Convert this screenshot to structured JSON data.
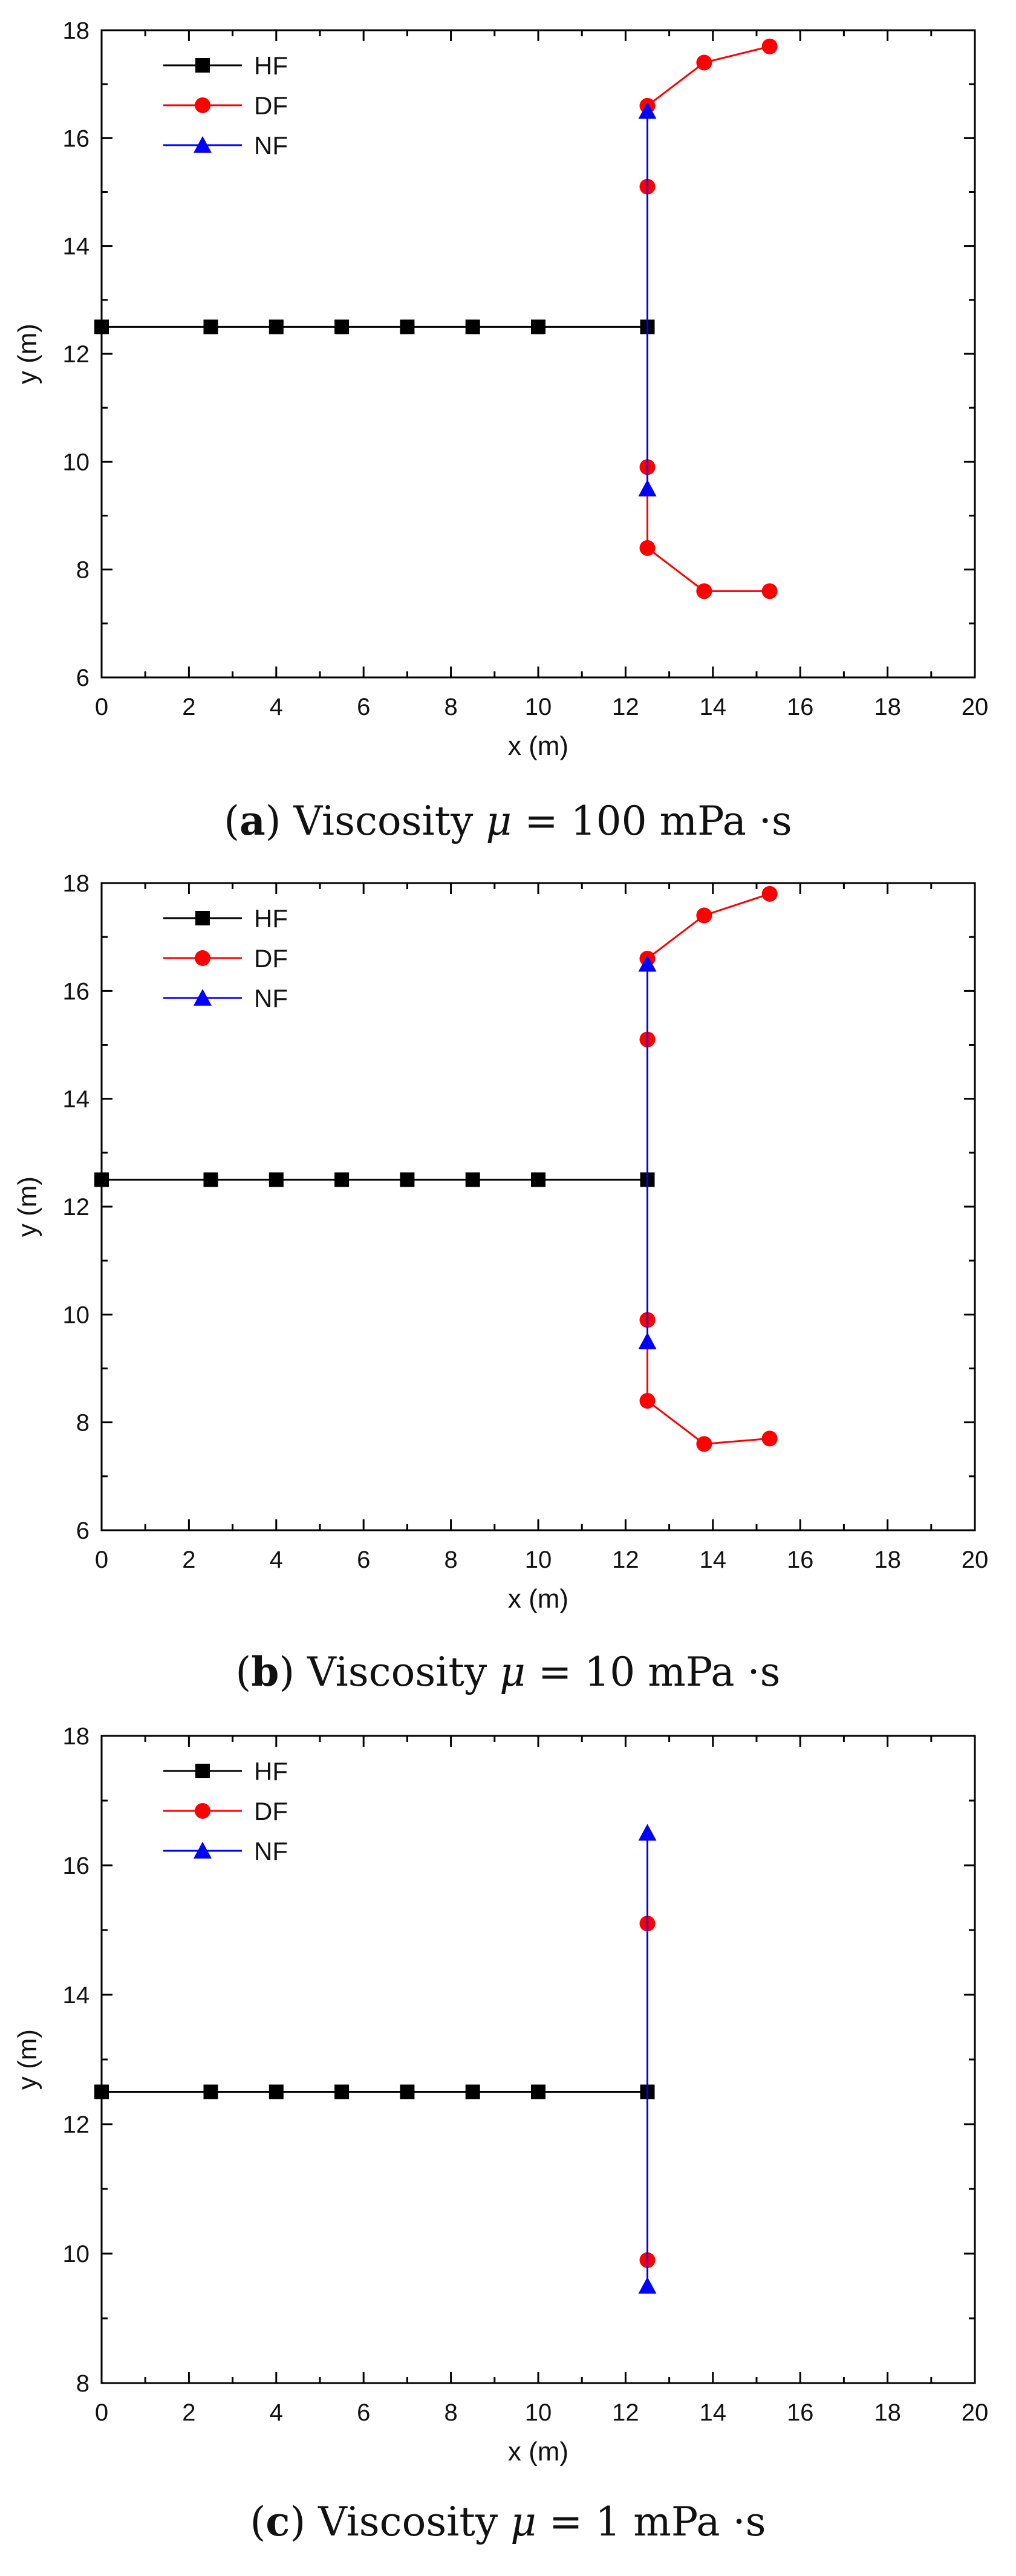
{
  "chart_data": [
    {
      "type": "line",
      "xlabel": "x (m)",
      "ylabel": "y (m)",
      "xlim": [
        0,
        20
      ],
      "ylim": [
        6,
        18
      ],
      "xticks": [
        0,
        2,
        4,
        6,
        8,
        10,
        12,
        14,
        16,
        18,
        20
      ],
      "yticks": [
        6,
        8,
        10,
        12,
        14,
        16,
        18
      ],
      "legend_position": "top-left",
      "caption": {
        "letter": "a",
        "text": "Viscosity",
        "symbol": "μ",
        "eq": "=",
        "value": "100 mPa ·s"
      },
      "series": [
        {
          "name": "HF",
          "color": "#000000",
          "marker": "square",
          "x": [
            0,
            2.5,
            4,
            5.5,
            7,
            8.5,
            10,
            12.5
          ],
          "y": [
            12.5,
            12.5,
            12.5,
            12.5,
            12.5,
            12.5,
            12.5,
            12.5
          ]
        },
        {
          "name": "DF",
          "color": "#ff0000",
          "marker": "circle",
          "x": [
            12.5,
            12.5,
            13.8,
            15.3
          ],
          "y": [
            16.6,
            15.1,
            17.4,
            17.7
          ],
          "segments": [
            [
              [
                12.5,
                16.6
              ],
              [
                13.8,
                17.4
              ],
              [
                15.3,
                17.7
              ]
            ],
            [
              [
                12.5,
                15.1
              ],
              [
                12.5,
                16.6
              ]
            ],
            [
              [
                12.5,
                9.9
              ],
              [
                12.5,
                8.4
              ],
              [
                13.8,
                7.6
              ],
              [
                15.3,
                7.6
              ]
            ]
          ],
          "points": [
            [
              12.5,
              16.6
            ],
            [
              13.8,
              17.4
            ],
            [
              15.3,
              17.7
            ],
            [
              12.5,
              15.1
            ],
            [
              12.5,
              9.9
            ],
            [
              12.5,
              8.4
            ],
            [
              13.8,
              7.6
            ],
            [
              15.3,
              7.6
            ]
          ]
        },
        {
          "name": "NF",
          "color": "#0000ff",
          "marker": "triangle",
          "points": [
            [
              12.5,
              16.5
            ],
            [
              12.5,
              9.5
            ]
          ],
          "segments": [
            [
              [
                12.5,
                16.5
              ],
              [
                12.5,
                9.5
              ]
            ]
          ]
        }
      ]
    },
    {
      "type": "line",
      "xlabel": "x (m)",
      "ylabel": "y (m)",
      "xlim": [
        0,
        20
      ],
      "ylim": [
        6,
        18
      ],
      "xticks": [
        0,
        2,
        4,
        6,
        8,
        10,
        12,
        14,
        16,
        18,
        20
      ],
      "yticks": [
        6,
        8,
        10,
        12,
        14,
        16,
        18
      ],
      "legend_position": "top-left",
      "caption": {
        "letter": "b",
        "text": "Viscosity",
        "symbol": "μ",
        "eq": "=",
        "value": "10 mPa ·s"
      },
      "series": [
        {
          "name": "HF",
          "color": "#000000",
          "marker": "square",
          "points": [
            [
              0,
              12.5
            ],
            [
              2.5,
              12.5
            ],
            [
              4,
              12.5
            ],
            [
              5.5,
              12.5
            ],
            [
              7,
              12.5
            ],
            [
              8.5,
              12.5
            ],
            [
              10,
              12.5
            ],
            [
              12.5,
              12.5
            ]
          ],
          "segments": [
            [
              [
                0,
                12.5
              ],
              [
                12.5,
                12.5
              ]
            ]
          ]
        },
        {
          "name": "DF",
          "color": "#ff0000",
          "marker": "circle",
          "segments": [
            [
              [
                12.5,
                16.6
              ],
              [
                13.8,
                17.4
              ],
              [
                15.3,
                17.8
              ]
            ],
            [
              [
                12.5,
                9.9
              ],
              [
                12.5,
                8.4
              ],
              [
                13.8,
                7.6
              ],
              [
                15.3,
                7.7
              ]
            ]
          ],
          "points": [
            [
              12.5,
              16.6
            ],
            [
              13.8,
              17.4
            ],
            [
              15.3,
              17.8
            ],
            [
              12.5,
              15.1
            ],
            [
              12.5,
              9.9
            ],
            [
              12.5,
              8.4
            ],
            [
              13.8,
              7.6
            ],
            [
              15.3,
              7.7
            ]
          ]
        },
        {
          "name": "NF",
          "color": "#0000ff",
          "marker": "triangle",
          "points": [
            [
              12.5,
              16.5
            ],
            [
              12.5,
              9.5
            ]
          ],
          "segments": [
            [
              [
                12.5,
                16.5
              ],
              [
                12.5,
                9.5
              ]
            ]
          ]
        }
      ]
    },
    {
      "type": "line",
      "xlabel": "x (m)",
      "ylabel": "y (m)",
      "xlim": [
        0,
        20
      ],
      "ylim": [
        8,
        18
      ],
      "xticks": [
        0,
        2,
        4,
        6,
        8,
        10,
        12,
        14,
        16,
        18,
        20
      ],
      "yticks": [
        8,
        10,
        12,
        14,
        16,
        18
      ],
      "legend_position": "top-left",
      "caption": {
        "letter": "c",
        "text": "Viscosity",
        "symbol": "μ",
        "eq": "=",
        "value": "1 mPa ·s"
      },
      "series": [
        {
          "name": "HF",
          "color": "#000000",
          "marker": "square",
          "points": [
            [
              0,
              12.5
            ],
            [
              2.5,
              12.5
            ],
            [
              4,
              12.5
            ],
            [
              5.5,
              12.5
            ],
            [
              7,
              12.5
            ],
            [
              8.5,
              12.5
            ],
            [
              10,
              12.5
            ],
            [
              12.5,
              12.5
            ]
          ],
          "segments": [
            [
              [
                0,
                12.5
              ],
              [
                12.5,
                12.5
              ]
            ]
          ]
        },
        {
          "name": "DF",
          "color": "#ff0000",
          "marker": "circle",
          "points": [
            [
              12.5,
              15.1
            ],
            [
              12.5,
              9.9
            ]
          ],
          "segments": []
        },
        {
          "name": "NF",
          "color": "#0000ff",
          "marker": "triangle",
          "points": [
            [
              12.5,
              16.5
            ],
            [
              12.5,
              9.5
            ]
          ],
          "segments": [
            [
              [
                12.5,
                16.5
              ],
              [
                12.5,
                9.5
              ]
            ]
          ]
        }
      ]
    }
  ]
}
